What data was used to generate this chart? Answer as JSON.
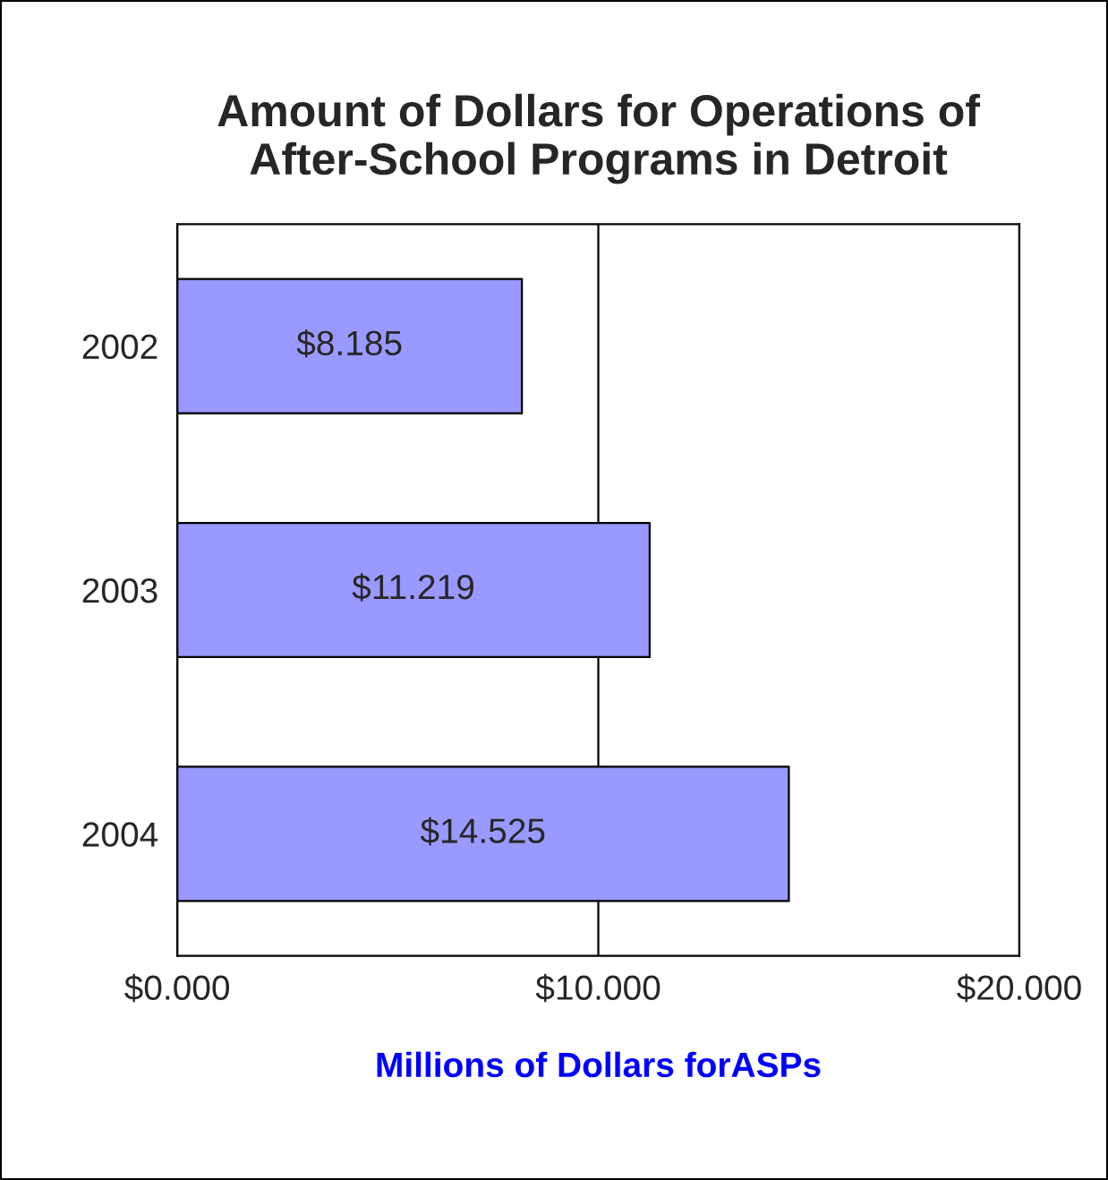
{
  "chart_data": {
    "type": "bar",
    "orientation": "horizontal",
    "title": "Amount of Dollars for Operations of\nAfter-School Programs in Detroit",
    "xlabel": "Millions of Dollars forASPs",
    "categories": [
      "2002",
      "2003",
      "2004"
    ],
    "values": [
      8.185,
      11.219,
      14.525
    ],
    "value_labels": [
      "$8.185",
      "$11.219",
      "$14.525"
    ],
    "color": "#9999ff",
    "xlim": [
      0,
      20
    ],
    "xticks": [
      {
        "value": 0,
        "label": "$0.000"
      },
      {
        "value": 10,
        "label": "$10.000"
      },
      {
        "value": 20,
        "label": "$20.000"
      }
    ],
    "grid": "x"
  }
}
